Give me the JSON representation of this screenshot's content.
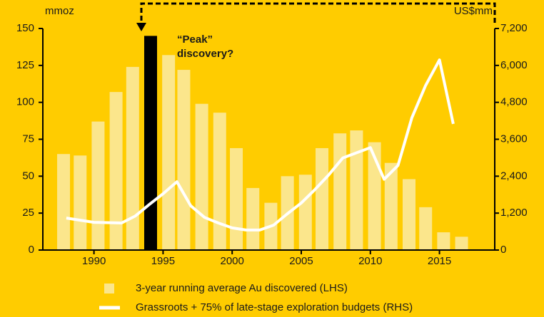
{
  "chart_data": {
    "type": "bar_line",
    "y_label": "mmoz",
    "y2_label": "US$mm",
    "annotation": [
      "“Peak”",
      "discovery?"
    ],
    "xlim": [
      1986.3,
      2019
    ],
    "xticks": [
      1990,
      1995,
      2000,
      2005,
      2010,
      2015
    ],
    "ylim": [
      0,
      150
    ],
    "yticks": [
      0,
      25,
      50,
      75,
      100,
      125,
      150
    ],
    "y2lim": [
      0,
      7200
    ],
    "y2ticks": [
      0,
      {
        "value": 1200,
        "label": "1,200"
      },
      {
        "value": 2400,
        "label": "2,400"
      },
      {
        "value": 3600,
        "label": "3,600"
      },
      {
        "value": 4800,
        "label": "4,800"
      },
      {
        "value": 6000,
        "label": "6,000"
      },
      {
        "value": 7200,
        "label": "7,200"
      }
    ],
    "series": [
      {
        "name": "3-year running average Au discovered (LHS)",
        "type": "bar",
        "color": "#fbe68c",
        "colors": [
          "#fbe68c",
          "#fbe68c",
          "#fbe68c",
          "#fbe68c",
          "#fbe68c",
          "#000000",
          "#fbe68c",
          "#fbe68c",
          "#fbe68c",
          "#fbe68c",
          "#fbe68c",
          "#fbe68c",
          "#fbe68c",
          "#fbe68c",
          "#fbe68c",
          "#fbe68c",
          "#fbe68c",
          "#fbe68c",
          "#fbe68c",
          "#fbe68c",
          "#fbe68c",
          "#fbe68c",
          "#fbe68c",
          "#fbe68c"
        ],
        "x": [
          1987.8,
          1989.0,
          1990.3,
          1991.6,
          1992.8,
          1994.1,
          1995.4,
          1996.5,
          1997.8,
          1999.1,
          2000.3,
          2001.5,
          2002.8,
          2004.0,
          2005.3,
          2006.5,
          2007.8,
          2009.0,
          2010.3,
          2011.5,
          2012.8,
          2014.0,
          2015.3,
          2016.6
        ],
        "values": [
          65,
          64,
          87,
          107,
          124,
          145,
          132,
          122,
          99,
          93,
          69,
          42,
          32,
          50,
          51,
          69,
          79,
          81,
          73,
          59,
          48,
          29,
          12,
          9
        ]
      },
      {
        "name": "Grassroots + 75% of late-stage exploration budgets (RHS)",
        "type": "line",
        "color": "#ffffff",
        "axis": "y2",
        "x": [
          1988,
          1990,
          1992,
          1993,
          1994,
          1995,
          1996,
          1997,
          1998,
          1999,
          2000,
          2001,
          2002,
          2003,
          2004,
          2005,
          2006,
          2007,
          2008,
          2010,
          2011,
          2012,
          2013,
          2014,
          2015,
          2016
        ],
        "values": [
          1040,
          900,
          880,
          1110,
          1480,
          1830,
          2220,
          1440,
          1060,
          880,
          720,
          650,
          650,
          810,
          1180,
          1530,
          1970,
          2450,
          2990,
          3330,
          2300,
          2750,
          4300,
          5350,
          6180,
          4100
        ]
      }
    ]
  }
}
